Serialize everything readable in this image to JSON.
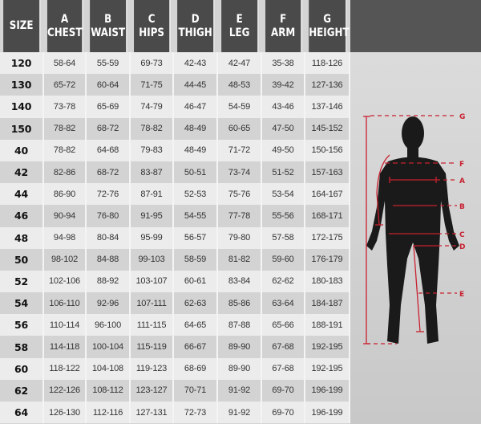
{
  "headers": [
    {
      "letter": "",
      "name": "SIZE"
    },
    {
      "letter": "A",
      "name": "CHEST"
    },
    {
      "letter": "B",
      "name": "WAIST"
    },
    {
      "letter": "C",
      "name": "HIPS"
    },
    {
      "letter": "D",
      "name": "THIGH"
    },
    {
      "letter": "E",
      "name": "LEG"
    },
    {
      "letter": "F",
      "name": "ARM"
    },
    {
      "letter": "G",
      "name": "HEIGHT"
    }
  ],
  "rows": [
    [
      "120",
      "58-64",
      "55-59",
      "69-73",
      "42-43",
      "42-47",
      "35-38",
      "118-126"
    ],
    [
      "130",
      "65-72",
      "60-64",
      "71-75",
      "44-45",
      "48-53",
      "39-42",
      "127-136"
    ],
    [
      "140",
      "73-78",
      "65-69",
      "74-79",
      "46-47",
      "54-59",
      "43-46",
      "137-146"
    ],
    [
      "150",
      "78-82",
      "68-72",
      "78-82",
      "48-49",
      "60-65",
      "47-50",
      "145-152"
    ],
    [
      "40",
      "78-82",
      "64-68",
      "79-83",
      "48-49",
      "71-72",
      "49-50",
      "150-156"
    ],
    [
      "42",
      "82-86",
      "68-72",
      "83-87",
      "50-51",
      "73-74",
      "51-52",
      "157-163"
    ],
    [
      "44",
      "86-90",
      "72-76",
      "87-91",
      "52-53",
      "75-76",
      "53-54",
      "164-167"
    ],
    [
      "46",
      "90-94",
      "76-80",
      "91-95",
      "54-55",
      "77-78",
      "55-56",
      "168-171"
    ],
    [
      "48",
      "94-98",
      "80-84",
      "95-99",
      "56-57",
      "79-80",
      "57-58",
      "172-175"
    ],
    [
      "50",
      "98-102",
      "84-88",
      "99-103",
      "58-59",
      "81-82",
      "59-60",
      "176-179"
    ],
    [
      "52",
      "102-106",
      "88-92",
      "103-107",
      "60-61",
      "83-84",
      "62-62",
      "180-183"
    ],
    [
      "54",
      "106-110",
      "92-96",
      "107-111",
      "62-63",
      "85-86",
      "63-64",
      "184-187"
    ],
    [
      "56",
      "110-114",
      "96-100",
      "111-115",
      "64-65",
      "87-88",
      "65-66",
      "188-191"
    ],
    [
      "58",
      "114-118",
      "100-104",
      "115-119",
      "66-67",
      "89-90",
      "67-68",
      "192-195"
    ],
    [
      "60",
      "118-122",
      "104-108",
      "119-123",
      "68-69",
      "89-90",
      "67-68",
      "192-195"
    ],
    [
      "62",
      "122-126",
      "108-112",
      "123-127",
      "70-71",
      "91-92",
      "69-70",
      "196-199"
    ],
    [
      "64",
      "126-130",
      "112-116",
      "127-131",
      "72-73",
      "91-92",
      "69-70",
      "196-199"
    ]
  ],
  "figure": {
    "labels": {
      "G": "G",
      "F": "F",
      "A": "A",
      "B": "B",
      "C": "C",
      "D": "D",
      "E": "E"
    },
    "colors": {
      "header": "#4a4a4a",
      "measure_line": "#c8202f",
      "silhouette": "#1a1a1a"
    }
  }
}
